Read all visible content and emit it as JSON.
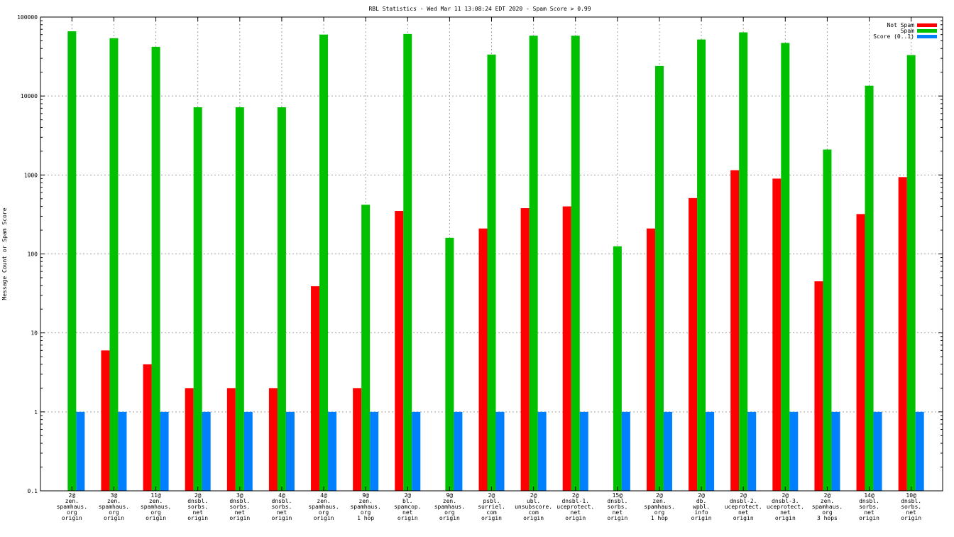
{
  "chart_data": {
    "type": "bar",
    "title": "RBL Statistics - Wed Mar 11 13:08:24 EDT 2020 - Spam Score > 0.99",
    "ylabel": "Message Count or Spam Score",
    "xlabel": "",
    "yscale": "log",
    "ylim": [
      0.1,
      100000
    ],
    "yticks": [
      "0.1",
      "1",
      "10",
      "100",
      "1000",
      "10000",
      "100000"
    ],
    "grid": true,
    "legend_position": "top-right",
    "categories": [
      [
        "2@",
        "zen.",
        "spamhaus.",
        "org",
        "origin"
      ],
      [
        "3@",
        "zen.",
        "spamhaus.",
        "org",
        "origin"
      ],
      [
        "11@",
        "zen.",
        "spamhaus.",
        "org",
        "origin"
      ],
      [
        "2@",
        "dnsbl.",
        "sorbs.",
        "net",
        "origin"
      ],
      [
        "3@",
        "dnsbl.",
        "sorbs.",
        "net",
        "origin"
      ],
      [
        "4@",
        "dnsbl.",
        "sorbs.",
        "net",
        "origin"
      ],
      [
        "4@",
        "zen.",
        "spamhaus.",
        "org",
        "origin"
      ],
      [
        "9@",
        "zen.",
        "spamhaus.",
        "org",
        "1 hop"
      ],
      [
        "2@",
        "bl.",
        "spamcop.",
        "net",
        "origin"
      ],
      [
        "9@",
        "zen.",
        "spamhaus.",
        "org",
        "origin"
      ],
      [
        "2@",
        "psbl.",
        "surriel.",
        "com",
        "origin"
      ],
      [
        "2@",
        "ubl.",
        "unsubscore.",
        "com",
        "origin"
      ],
      [
        "2@",
        "dnsbl-1.",
        "uceprotect.",
        "net",
        "origin"
      ],
      [
        "15@",
        "dnsbl.",
        "sorbs.",
        "net",
        "origin"
      ],
      [
        "2@",
        "zen.",
        "spamhaus.",
        "org",
        "1 hop"
      ],
      [
        "2@",
        "db.",
        "wpbl.",
        "info",
        "origin"
      ],
      [
        "2@",
        "dnsbl-2.",
        "uceprotect.",
        "net",
        "origin"
      ],
      [
        "2@",
        "dnsbl-3.",
        "uceprotect.",
        "net",
        "origin"
      ],
      [
        "2@",
        "zen.",
        "spamhaus.",
        "org",
        "3 hops"
      ],
      [
        "14@",
        "dnsbl.",
        "sorbs.",
        "net",
        "origin"
      ],
      [
        "10@",
        "dnsbl.",
        "sorbs.",
        "net",
        "origin"
      ]
    ],
    "series": [
      {
        "name": "Not Spam",
        "color": "#ff0000",
        "values": [
          null,
          6,
          4,
          2,
          2,
          2,
          39,
          2,
          350,
          null,
          210,
          380,
          400,
          null,
          210,
          510,
          1150,
          900,
          45,
          320,
          940
        ]
      },
      {
        "name": "Spam",
        "color": "#00c000",
        "values": [
          66000,
          54000,
          42000,
          7200,
          7200,
          7200,
          60000,
          420,
          61000,
          160,
          33500,
          58000,
          58000,
          125,
          24000,
          52000,
          64000,
          47000,
          2100,
          13500,
          33000
        ]
      },
      {
        "name": "Score (0..1)",
        "color": "#0080ff",
        "values": [
          1,
          1,
          1,
          1,
          1,
          1,
          1,
          1,
          1,
          1,
          1,
          1,
          1,
          1,
          1,
          1,
          1,
          1,
          1,
          1,
          1
        ]
      }
    ]
  }
}
